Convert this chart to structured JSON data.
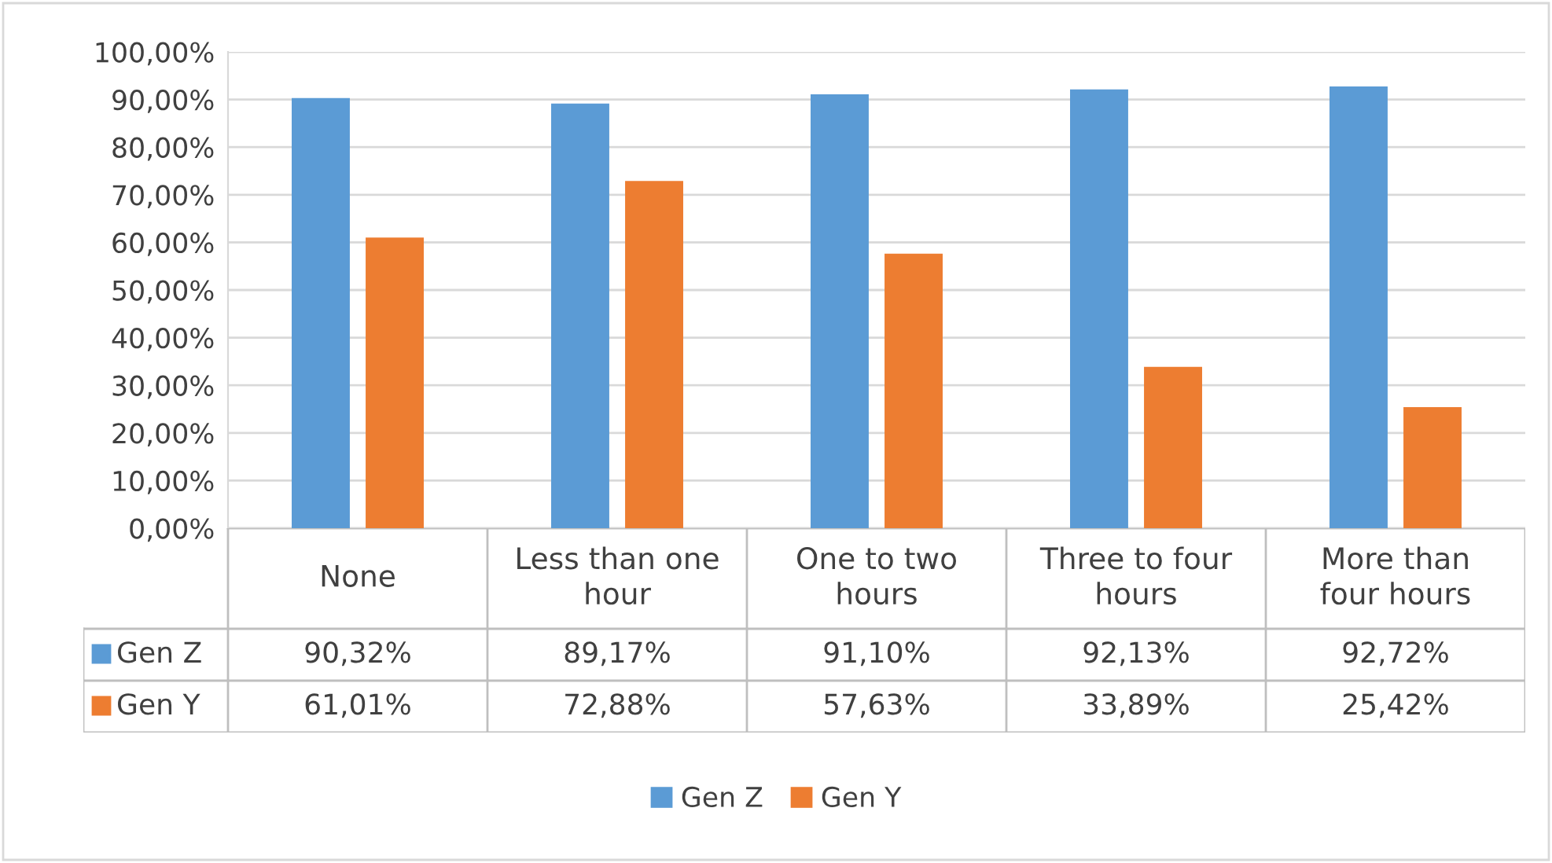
{
  "chart_data": {
    "type": "bar",
    "categories": [
      "None",
      "Less than one hour",
      "One to two hours",
      "Three to four hours",
      "More than four hours"
    ],
    "series": [
      {
        "name": "Gen Z",
        "color": "#5b9bd5",
        "values": [
          90.32,
          89.17,
          91.1,
          92.13,
          92.72
        ],
        "value_labels": [
          "90,32%",
          "89,17%",
          "91,10%",
          "92,13%",
          "92,72%"
        ]
      },
      {
        "name": "Gen Y",
        "color": "#ed7d31",
        "values": [
          61.01,
          72.88,
          57.63,
          33.89,
          25.42
        ],
        "value_labels": [
          "61,01%",
          "72,88%",
          "57,63%",
          "33,89%",
          "25,42%"
        ]
      }
    ],
    "ylim": [
      0,
      100
    ],
    "yticks": [
      {
        "value": 0,
        "label": "0,00%"
      },
      {
        "value": 10,
        "label": "10,00%"
      },
      {
        "value": 20,
        "label": "20,00%"
      },
      {
        "value": 30,
        "label": "30,00%"
      },
      {
        "value": 40,
        "label": "40,00%"
      },
      {
        "value": 50,
        "label": "50,00%"
      },
      {
        "value": 60,
        "label": "60,00%"
      },
      {
        "value": 70,
        "label": "70,00%"
      },
      {
        "value": 80,
        "label": "80,00%"
      },
      {
        "value": 90,
        "label": "90,00%"
      },
      {
        "value": 100,
        "label": "100,00%"
      }
    ],
    "grid": "y",
    "legend": "bottom"
  }
}
